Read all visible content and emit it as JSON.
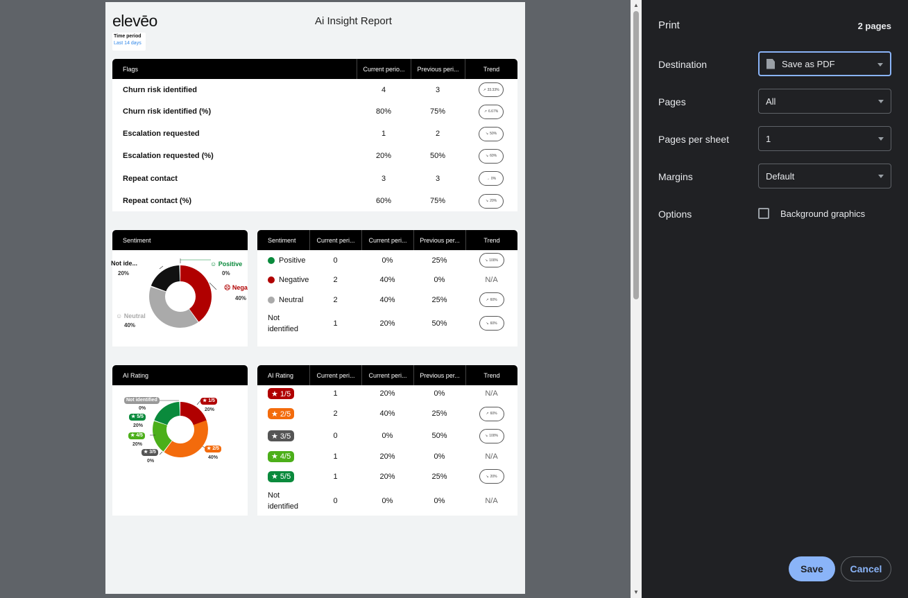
{
  "report": {
    "logo": "elevēo",
    "time_period_label": "Time period",
    "time_period_value": "Last 14 days",
    "title": "Ai Insight Report"
  },
  "flags": {
    "headers": [
      "Flags",
      "Current perio...",
      "Previous peri...",
      "Trend"
    ],
    "rows": [
      {
        "label": "Churn risk identified",
        "current": "4",
        "previous": "3",
        "trend": "33.33%",
        "dir": "up"
      },
      {
        "label": "Churn risk identified (%)",
        "current": "80%",
        "previous": "75%",
        "trend": "6.67%",
        "dir": "up"
      },
      {
        "label": "Escalation requested",
        "current": "1",
        "previous": "2",
        "trend": "50%",
        "dir": "down"
      },
      {
        "label": "Escalation requested (%)",
        "current": "20%",
        "previous": "50%",
        "trend": "60%",
        "dir": "down"
      },
      {
        "label": "Repeat contact",
        "current": "3",
        "previous": "3",
        "trend": "0%",
        "dir": "flat"
      },
      {
        "label": "Repeat contact (%)",
        "current": "60%",
        "previous": "75%",
        "trend": "20%",
        "dir": "down"
      }
    ]
  },
  "sentiment_chart": {
    "title": "Sentiment",
    "labels": {
      "not_identified": "Not ide...",
      "not_identified_pct": "20%",
      "positive": "Positive",
      "positive_pct": "0%",
      "negative": "Nega",
      "negative_pct": "40%",
      "neutral": "Neutral",
      "neutral_pct": "40%"
    }
  },
  "sentiment_table": {
    "headers": [
      "Sentiment",
      "Current peri...",
      "Current peri...",
      "Previous per...",
      "Trend"
    ],
    "rows": [
      {
        "label": "Positive",
        "count": "0",
        "pct": "0%",
        "prev": "25%",
        "trend": "100%",
        "dir": "down",
        "face": "positive"
      },
      {
        "label": "Negative",
        "count": "2",
        "pct": "40%",
        "prev": "0%",
        "trend": "N/A",
        "dir": "none",
        "face": "negative"
      },
      {
        "label": "Neutral",
        "count": "2",
        "pct": "40%",
        "prev": "25%",
        "trend": "60%",
        "dir": "up",
        "face": "neutral"
      },
      {
        "label": "Not identified",
        "count": "1",
        "pct": "20%",
        "prev": "50%",
        "trend": "60%",
        "dir": "down",
        "face": "none"
      }
    ]
  },
  "rating_chart": {
    "title": "AI Rating",
    "labels": {
      "not_identified": "Not identified",
      "not_identified_pct": "0%",
      "r1": "★ 1/5",
      "r1_pct": "20%",
      "r5": "★ 5/5",
      "r5_pct": "20%",
      "r4": "★ 4/5",
      "r4_pct": "20%",
      "r3": "★ 3/5",
      "r3_pct": "0%",
      "r2": "★ 2/5",
      "r2_pct": "40%"
    }
  },
  "rating_table": {
    "headers": [
      "AI Rating",
      "Current peri...",
      "Current peri...",
      "Previous per...",
      "Trend"
    ],
    "rows": [
      {
        "label": "★ 1/5",
        "color": "#b00000",
        "count": "1",
        "pct": "20%",
        "prev": "0%",
        "trend": "N/A",
        "dir": "none"
      },
      {
        "label": "★ 2/5",
        "color": "#f36b0c",
        "count": "2",
        "pct": "40%",
        "prev": "25%",
        "trend": "60%",
        "dir": "up"
      },
      {
        "label": "★ 3/5",
        "color": "#555555",
        "count": "0",
        "pct": "0%",
        "prev": "50%",
        "trend": "100%",
        "dir": "down"
      },
      {
        "label": "★ 4/5",
        "color": "#4caf1a",
        "count": "1",
        "pct": "20%",
        "prev": "0%",
        "trend": "N/A",
        "dir": "none"
      },
      {
        "label": "★ 5/5",
        "color": "#0a8a3c",
        "count": "1",
        "pct": "20%",
        "prev": "25%",
        "trend": "20%",
        "dir": "down"
      },
      {
        "label": "Not identified",
        "color": "",
        "count": "0",
        "pct": "0%",
        "prev": "0%",
        "trend": "N/A",
        "dir": "none"
      }
    ]
  },
  "print": {
    "title": "Print",
    "page_count": "2 pages",
    "destination_label": "Destination",
    "destination_value": "Save as PDF",
    "pages_label": "Pages",
    "pages_value": "All",
    "pps_label": "Pages per sheet",
    "pps_value": "1",
    "margins_label": "Margins",
    "margins_value": "Default",
    "options_label": "Options",
    "bg_graphics_label": "Background graphics",
    "save": "Save",
    "cancel": "Cancel"
  },
  "colors": {
    "accent_blue": "#8ab4f8",
    "negative_red": "#b00000",
    "positive_green": "#0a8a3c",
    "neutral_grey": "#aaaaaa"
  }
}
